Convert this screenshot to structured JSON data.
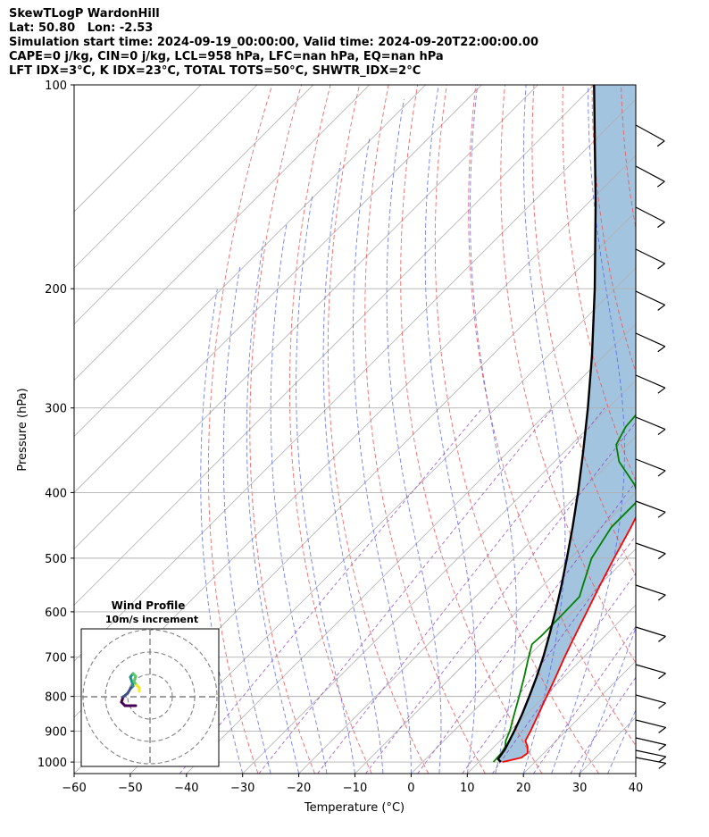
{
  "header": {
    "line1": "SkewTLogP WardonHill",
    "line2": "Lat: 50.80   Lon: -2.53",
    "line3": "Simulation start time: 2024-09-19_00:00:00, Valid time: 2024-09-20T22:00:00.00",
    "line4": "CAPE=0 j/kg, CIN=0 j/kg, LCL=958 hPa, LFC=nan hPa, EQ=nan hPa",
    "line5": "LFT IDX=3°C, K IDX=23°C, TOTAL TOTS=50°C, SHWTR_IDX=2°C"
  },
  "chart_data": {
    "type": "line",
    "subtype": "skew-t log-p",
    "xlabel": "Temperature (°C)",
    "ylabel": "Pressure (hPa)",
    "xlim": [
      -60,
      40
    ],
    "ylim": [
      1040,
      100
    ],
    "yscale": "log",
    "x_ticks": [
      -60,
      -50,
      -40,
      -30,
      -20,
      -10,
      0,
      10,
      20,
      30,
      40
    ],
    "x_tick_labels": [
      "−60",
      "−50",
      "−40",
      "−30",
      "−20",
      "−10",
      "0",
      "10",
      "20",
      "30",
      "40"
    ],
    "y_ticks": [
      1000,
      900,
      800,
      700,
      600,
      500,
      400,
      300,
      200,
      100
    ],
    "grid": true,
    "series": [
      {
        "color": "#ff0000",
        "points": [
          [
            1000,
            14.2
          ],
          [
            985,
            16.8
          ],
          [
            970,
            17.1
          ],
          [
            950,
            16.0
          ],
          [
            930,
            14.5
          ],
          [
            900,
            13.7
          ],
          [
            850,
            12.1
          ],
          [
            800,
            10.4
          ],
          [
            750,
            8.6
          ],
          [
            700,
            6.6
          ],
          [
            650,
            4.6
          ],
          [
            600,
            2.5
          ],
          [
            550,
            0.2
          ],
          [
            500,
            -2.2
          ],
          [
            450,
            -4.7
          ],
          [
            400,
            -7.8
          ],
          [
            350,
            -10.5
          ],
          [
            300,
            -12.5
          ],
          [
            260,
            -13.0
          ],
          [
            240,
            -12.0
          ],
          [
            220,
            -9.5
          ],
          [
            200,
            -6.5
          ],
          [
            180,
            -3.5
          ],
          [
            160,
            -0.5
          ],
          [
            140,
            1.0
          ],
          [
            120,
            2.5
          ],
          [
            100,
            2.5
          ]
        ]
      },
      {
        "color": "#008000",
        "points": [
          [
            1000,
            12.6
          ],
          [
            970,
            12.4
          ],
          [
            950,
            12.0
          ],
          [
            930,
            11.0
          ],
          [
            900,
            10.0
          ],
          [
            850,
            7.8
          ],
          [
            800,
            5.5
          ],
          [
            750,
            3.0
          ],
          [
            700,
            0.2
          ],
          [
            670,
            -1.5
          ],
          [
            650,
            -1.3
          ],
          [
            600,
            -1.4
          ],
          [
            570,
            -1.5
          ],
          [
            550,
            -2.8
          ],
          [
            500,
            -6.2
          ],
          [
            450,
            -8.2
          ],
          [
            410,
            -8.2
          ],
          [
            390,
            -11.5
          ],
          [
            360,
            -18.5
          ],
          [
            340,
            -22.0
          ],
          [
            320,
            -23.5
          ],
          [
            300,
            -24.0
          ],
          [
            270,
            -24.3
          ],
          [
            250,
            -25.5
          ],
          [
            220,
            -28.5
          ],
          [
            200,
            -31.5
          ],
          [
            175,
            -35.5
          ],
          [
            150,
            -39.5
          ],
          [
            130,
            -40.0
          ],
          [
            110,
            -40.0
          ],
          [
            100,
            -40.0
          ]
        ]
      },
      {
        "color": "#000000",
        "points": [
          [
            1000,
            13.9
          ],
          [
            990,
            12.9
          ],
          [
            958,
            12.4
          ],
          [
            900,
            10.8
          ],
          [
            850,
            9.2
          ],
          [
            800,
            7.3
          ],
          [
            750,
            5.2
          ],
          [
            700,
            2.8
          ],
          [
            650,
            0.0
          ],
          [
            600,
            -3.1
          ],
          [
            550,
            -6.6
          ],
          [
            500,
            -10.6
          ],
          [
            450,
            -15.1
          ],
          [
            400,
            -20.3
          ],
          [
            350,
            -26.4
          ],
          [
            300,
            -33.6
          ],
          [
            250,
            -42.4
          ],
          [
            200,
            -53.6
          ],
          [
            150,
            -68.5
          ],
          [
            100,
            -90.0
          ]
        ]
      }
    ]
  },
  "hodograph": {
    "title": "Wind Profile",
    "subtitle": "10m/s increment",
    "colormap": [
      "#440154",
      "#3b528b",
      "#21918c",
      "#5ec962",
      "#fde725"
    ]
  },
  "wind_barbs": {
    "color": "#000000"
  }
}
